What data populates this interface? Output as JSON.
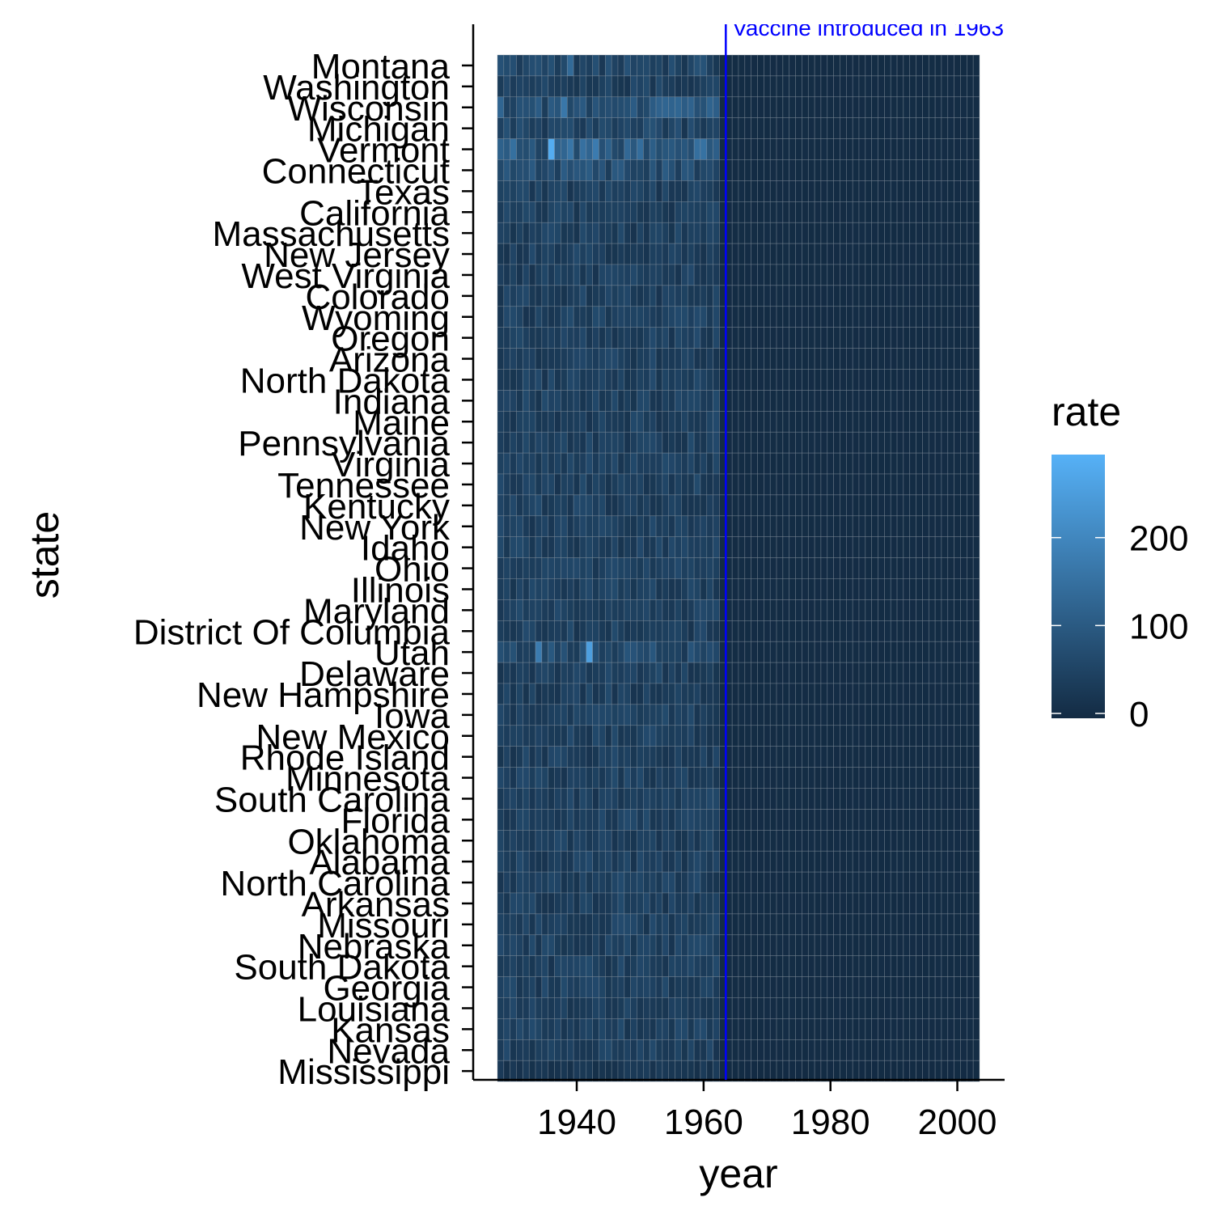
{
  "chart_data": {
    "type": "heatmap",
    "title": "",
    "xlabel": "year",
    "ylabel": "state",
    "x_range": [
      1928,
      2003
    ],
    "x_ticks": [
      1940,
      1960,
      1980,
      2000
    ],
    "x_tick_labels": [
      "1940",
      "1960",
      "1980",
      "2000"
    ],
    "states": [
      "Montana",
      "Washington",
      "Wisconsin",
      "Michigan",
      "Vermont",
      "Connecticut",
      "Texas",
      "California",
      "Massachusetts",
      "New Jersey",
      "West Virginia",
      "Colorado",
      "Wyoming",
      "Oregon",
      "Arizona",
      "North Dakota",
      "Indiana",
      "Maine",
      "Pennsylvania",
      "Virginia",
      "Tennessee",
      "Kentucky",
      "New York",
      "Idaho",
      "Ohio",
      "Illinois",
      "Maryland",
      "District Of Columbia",
      "Utah",
      "Delaware",
      "New Hampshire",
      "Iowa",
      "New Mexico",
      "Rhode Island",
      "Minnesota",
      "South Carolina",
      "Florida",
      "Oklahoma",
      "Alabama",
      "North Carolina",
      "Arkansas",
      "Missouri",
      "Nebraska",
      "South Dakota",
      "Georgia",
      "Louisiana",
      "Kansas",
      "Nevada",
      "Mississippi"
    ],
    "legend": {
      "title": "rate",
      "range": [
        0,
        300
      ],
      "ticks": [
        0,
        100,
        200
      ],
      "tick_labels": [
        "0",
        "100",
        "200"
      ],
      "low_color": "#132B43",
      "high_color": "#56B1F7"
    },
    "annotation": {
      "x": 1963,
      "label": "Vaccine introduced in 1963",
      "color": "#0000FF"
    },
    "grid": false,
    "legend_position": "right",
    "approximate_values": [
      {
        "state": "Montana",
        "pre_1963_typical": 60,
        "post_1963_typical": 3,
        "peaks": [
          {
            "year": 1939,
            "rate": 140
          }
        ]
      },
      {
        "state": "Washington",
        "pre_1963_typical": 45,
        "post_1963_typical": 3
      },
      {
        "state": "Wisconsin",
        "pre_1963_typical": 90,
        "post_1963_typical": 3,
        "peaks": [
          {
            "year": 1938,
            "rate": 170
          }
        ]
      },
      {
        "state": "Michigan",
        "pre_1963_typical": 55,
        "post_1963_typical": 3
      },
      {
        "state": "Vermont",
        "pre_1963_typical": 110,
        "post_1963_typical": 3,
        "peaks": [
          {
            "year": 1936,
            "rate": 290
          },
          {
            "year": 1943,
            "rate": 180
          }
        ]
      },
      {
        "state": "Connecticut",
        "pre_1963_typical": 70,
        "post_1963_typical": 2
      },
      {
        "state": "Utah",
        "pre_1963_typical": 70,
        "post_1963_typical": 3,
        "peaks": [
          {
            "year": 1942,
            "rate": 260
          },
          {
            "year": 1934,
            "rate": 180
          }
        ]
      },
      {
        "state": "Mississippi",
        "pre_1963_typical": 25,
        "post_1963_typical": 1
      }
    ]
  }
}
